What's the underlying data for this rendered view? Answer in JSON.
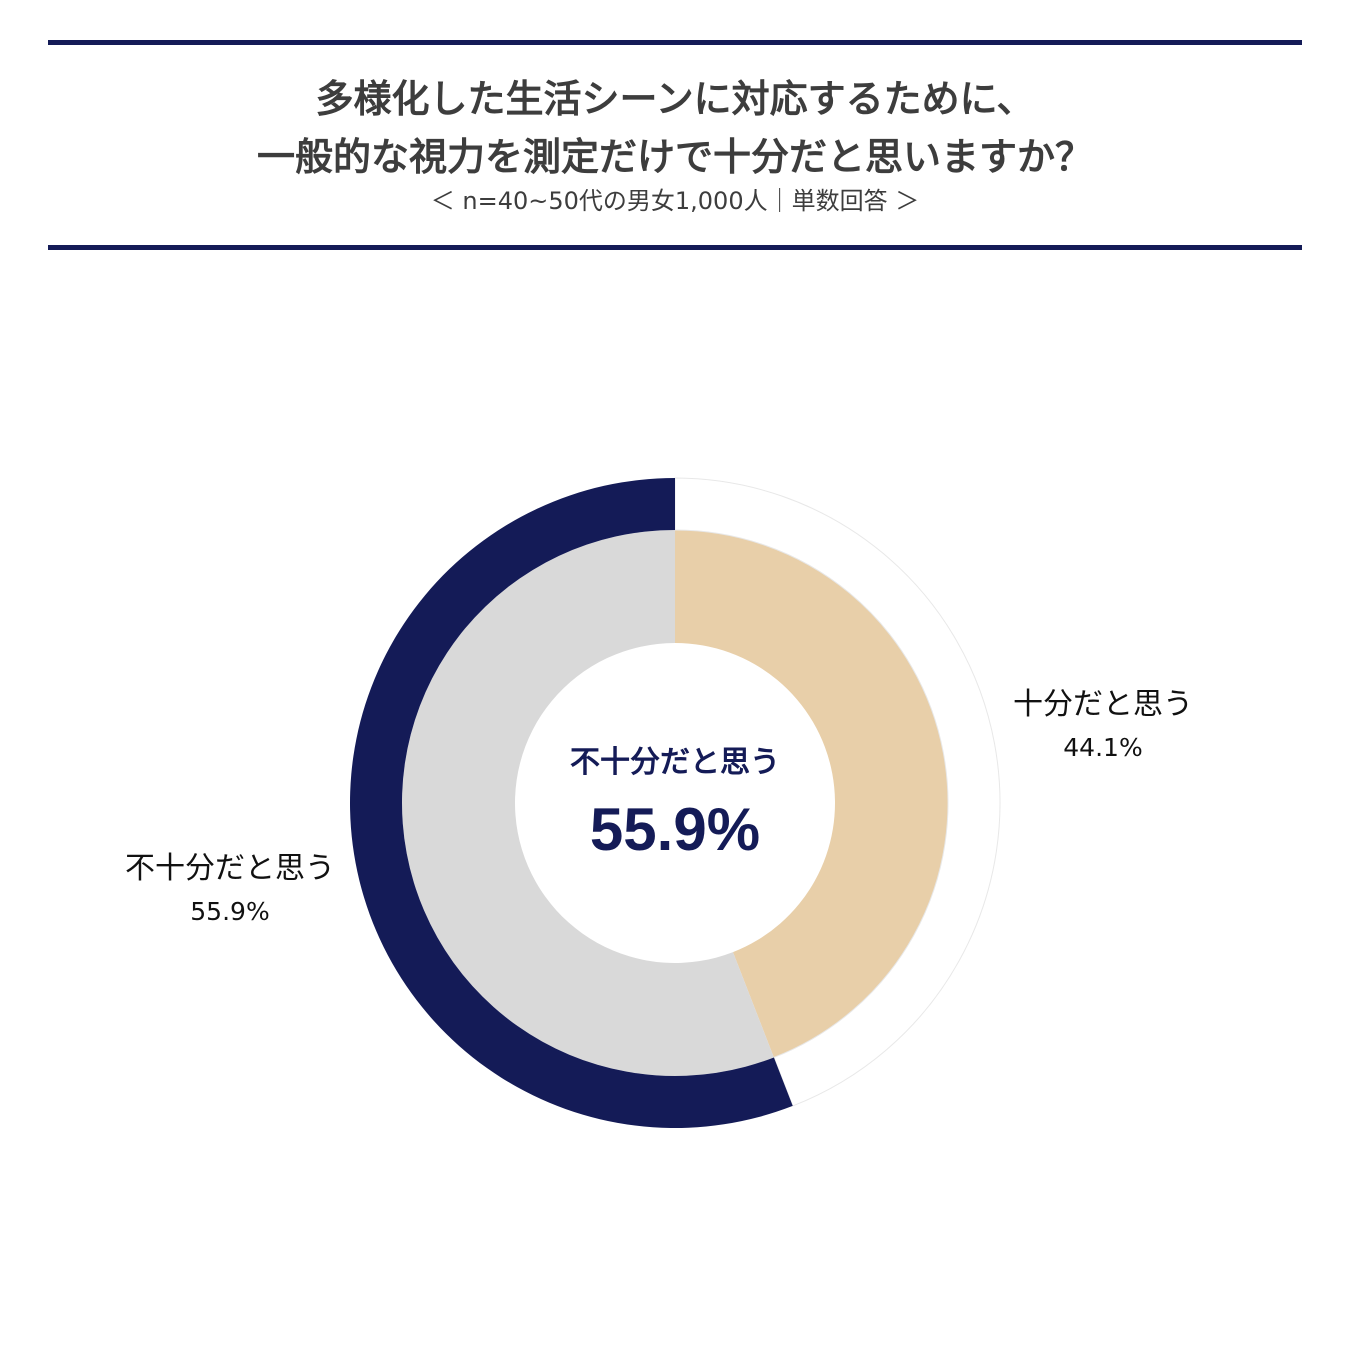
{
  "header": {
    "title_line1": "多様化した生活シーンに対応するために、",
    "title_line2": "一般的な視力を測定だけで十分だと思いますか？",
    "subtitle": "＜ n=40~50代の男女1,000人｜単数回答 ＞"
  },
  "colors": {
    "accent": "#141b57",
    "enough": "#e8cfa9",
    "not_enough": "#d9d9d9",
    "highlight_ring": "#141b57"
  },
  "chart_data": {
    "type": "pie",
    "style": "donut",
    "unit": "%",
    "slices": [
      {
        "label": "十分だと思う",
        "value": 44.1,
        "value_text": "44.1%"
      },
      {
        "label": "不十分だと思う",
        "value": 55.9,
        "value_text": "55.9%"
      }
    ],
    "center": {
      "label": "不十分だと思う",
      "value_text": "55.9%"
    }
  }
}
